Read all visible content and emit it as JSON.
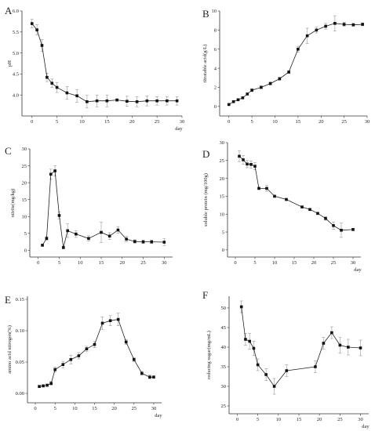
{
  "chart_data": [
    {
      "panel": "A",
      "type": "line",
      "xlabel": "day",
      "ylabel": "pH",
      "xlim": [
        -2,
        30
      ],
      "ylim": [
        3.5,
        6.0
      ],
      "xticks": [
        0,
        5,
        10,
        15,
        20,
        25,
        30
      ],
      "yticks": [
        4.0,
        4.5,
        5.0,
        5.5,
        6.0
      ],
      "ytick_labels": [
        "4.0",
        "4.5",
        "5.0",
        "5.5",
        "6.0"
      ],
      "x": [
        0,
        1,
        2,
        3,
        4,
        5,
        7,
        9,
        11,
        13,
        15,
        17,
        19,
        21,
        23,
        25,
        27,
        29
      ],
      "values": [
        5.7,
        5.55,
        5.18,
        4.42,
        4.28,
        4.18,
        4.05,
        3.98,
        3.84,
        3.86,
        3.86,
        3.88,
        3.85,
        3.84,
        3.86,
        3.86,
        3.86,
        3.86
      ],
      "errors": [
        0.1,
        0.12,
        0.14,
        0.1,
        0.1,
        0.12,
        0.15,
        0.15,
        0.15,
        0.14,
        0.14,
        0.03,
        0.12,
        0.12,
        0.12,
        0.1,
        0.1,
        0.1
      ]
    },
    {
      "panel": "B",
      "type": "line",
      "xlabel": "",
      "ylabel": "titratable acid(g/L)",
      "xlim": [
        -2,
        30
      ],
      "ylim": [
        -1,
        10
      ],
      "xticks": [
        0,
        5,
        10,
        15,
        20,
        25,
        30
      ],
      "yticks": [
        0,
        2,
        4,
        6,
        8,
        10
      ],
      "ytick_labels": [
        "0",
        "2",
        "4",
        "6",
        "8",
        "10"
      ],
      "x": [
        0,
        1,
        2,
        3,
        4,
        5,
        7,
        9,
        11,
        13,
        15,
        17,
        19,
        21,
        23,
        25,
        27,
        29
      ],
      "values": [
        0.2,
        0.5,
        0.7,
        0.9,
        1.3,
        1.7,
        2.0,
        2.4,
        2.9,
        3.6,
        6.0,
        7.4,
        8.0,
        8.4,
        8.7,
        8.6,
        8.55,
        8.6
      ],
      "errors": [
        0.1,
        0.1,
        0.1,
        0.1,
        0.1,
        0.15,
        0.15,
        0.15,
        0.15,
        0.15,
        0.3,
        0.8,
        0.3,
        0.3,
        0.8,
        0.2,
        0.15,
        0.15
      ]
    },
    {
      "panel": "C",
      "type": "line",
      "xlabel": "",
      "ylabel": "nitrite(mg/kg)",
      "xlim": [
        -2,
        32
      ],
      "ylim": [
        -2,
        30
      ],
      "xticks": [
        0,
        5,
        10,
        15,
        20,
        25,
        30
      ],
      "yticks": [
        0,
        5,
        10,
        15,
        20,
        25,
        30
      ],
      "ytick_labels": [
        "0",
        "5",
        "10",
        "15",
        "20",
        "25",
        "30"
      ],
      "x": [
        1,
        2,
        3,
        4,
        5,
        6,
        7,
        9,
        12,
        15,
        17,
        19,
        21,
        23,
        25,
        27,
        30
      ],
      "values": [
        1.5,
        3.5,
        22.5,
        23.5,
        10.3,
        0.8,
        5.8,
        4.8,
        3.5,
        5.3,
        4.2,
        6.0,
        3.3,
        2.6,
        2.5,
        2.5,
        2.4
      ],
      "errors": [
        0.3,
        0.5,
        1.5,
        1.5,
        1.0,
        0.3,
        2.0,
        1.0,
        0.8,
        3.0,
        1.0,
        1.0,
        0.8,
        0.5,
        0.5,
        0.5,
        1.0
      ]
    },
    {
      "panel": "D",
      "type": "line",
      "xlabel": "day",
      "ylabel": "soluble protein (mg/100g)",
      "xlim": [
        -2,
        32
      ],
      "ylim": [
        -2,
        30
      ],
      "xticks": [
        0,
        5,
        10,
        15,
        20,
        25,
        30
      ],
      "yticks": [
        0,
        5,
        10,
        15,
        20,
        25,
        30
      ],
      "ytick_labels": [
        "0",
        "5",
        "10",
        "15",
        "20",
        "25",
        "30"
      ],
      "x": [
        1,
        2,
        3,
        4,
        5,
        6,
        8,
        10,
        13,
        17,
        19,
        21,
        23,
        25,
        27,
        30
      ],
      "values": [
        26.2,
        25.2,
        24.0,
        23.9,
        23.4,
        17.2,
        17.2,
        15.0,
        14.1,
        12.0,
        11.3,
        10.2,
        8.8,
        6.8,
        5.5,
        5.7
      ],
      "errors": [
        1.5,
        1.2,
        1.0,
        1.0,
        1.0,
        0.3,
        0.8,
        0.3,
        0.3,
        0.3,
        0.3,
        0.3,
        0.5,
        1.0,
        2.0,
        0.3
      ]
    },
    {
      "panel": "E",
      "type": "line",
      "xlabel": "day",
      "ylabel": "amino acid nitrogen(%)",
      "xlim": [
        -2,
        32
      ],
      "ylim": [
        -0.015,
        0.155
      ],
      "xticks": [
        0,
        5,
        10,
        15,
        20,
        25,
        30
      ],
      "yticks": [
        0.0,
        0.05,
        0.1,
        0.15
      ],
      "ytick_labels": [
        "0.00",
        "0.05",
        "0.10",
        "0.15"
      ],
      "x": [
        1,
        2,
        3,
        4,
        5,
        7,
        9,
        11,
        13,
        15,
        17,
        19,
        21,
        23,
        25,
        27,
        29,
        30
      ],
      "values": [
        0.011,
        0.012,
        0.013,
        0.016,
        0.038,
        0.046,
        0.054,
        0.06,
        0.071,
        0.078,
        0.112,
        0.116,
        0.118,
        0.082,
        0.054,
        0.032,
        0.026,
        0.026
      ],
      "errors": [
        0.002,
        0.002,
        0.002,
        0.003,
        0.004,
        0.005,
        0.007,
        0.005,
        0.004,
        0.005,
        0.01,
        0.008,
        0.01,
        0.004,
        0.003,
        0.003,
        0.003,
        0.002
      ]
    },
    {
      "panel": "F",
      "type": "line",
      "xlabel": "day",
      "ylabel": "reducing sugar(mg/mL)",
      "xlim": [
        -2,
        32
      ],
      "ylim": [
        23,
        53
      ],
      "xticks": [
        0,
        5,
        10,
        15,
        20,
        25,
        30
      ],
      "yticks": [
        25,
        30,
        35,
        40,
        45,
        50
      ],
      "ytick_labels": [
        "25",
        "30",
        "35",
        "40",
        "45",
        "50"
      ],
      "x": [
        1,
        2,
        3,
        4,
        5,
        7,
        9,
        12,
        19,
        21,
        23,
        25,
        27,
        30
      ],
      "values": [
        50.3,
        42.0,
        41.5,
        39.7,
        35.5,
        33.0,
        30.0,
        34.0,
        35.0,
        41.0,
        43.7,
        40.5,
        40.0,
        39.8
      ],
      "errors": [
        1.5,
        1.5,
        2.0,
        1.8,
        1.5,
        1.5,
        2.0,
        1.5,
        1.5,
        1.5,
        1.5,
        2.0,
        2.0,
        2.0
      ]
    }
  ]
}
